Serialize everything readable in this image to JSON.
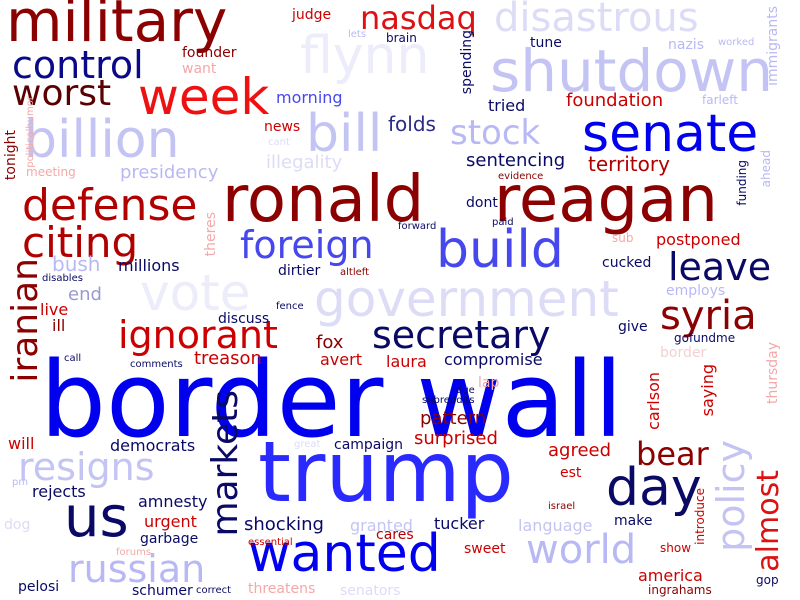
{
  "title": "",
  "colors": {
    "dark_red": "#8b0000",
    "red": "#dd1111",
    "light_red": "#f4a8a8",
    "pale_red": "#f9d6d6",
    "navy": "#0a0a66",
    "blue": "#0000ee",
    "mid_blue": "#4747f0",
    "light_blue": "#b8b8f4",
    "pale_blue": "#dedef8"
  },
  "words": [
    {
      "text": "border wall",
      "color": "#0000ee"
    },
    {
      "text": "trump",
      "color": "#2a2aff"
    },
    {
      "text": "ronald",
      "color": "#8b0000"
    },
    {
      "text": "reagan",
      "color": "#8b0000"
    },
    {
      "text": "military",
      "color": "#8b0000"
    },
    {
      "text": "shutdown",
      "color": "#c4c4f4"
    },
    {
      "text": "senate",
      "color": "#0000ee"
    },
    {
      "text": "billion",
      "color": "#c4c4f4"
    },
    {
      "text": "bill",
      "color": "#c4c4f4"
    },
    {
      "text": "week",
      "color": "#ee1111"
    },
    {
      "text": "build",
      "color": "#4747ee"
    },
    {
      "text": "government",
      "color": "#dcdcf6"
    },
    {
      "text": "vote",
      "color": "#ececfa"
    },
    {
      "text": "us",
      "color": "#0a0a66"
    },
    {
      "text": "wanted",
      "color": "#0000ee"
    },
    {
      "text": "day",
      "color": "#0a0a66"
    },
    {
      "text": "world",
      "color": "#b8b8f4"
    },
    {
      "text": "disastrous",
      "color": "#dcdcf6"
    },
    {
      "text": "flynn",
      "color": "#ececfa"
    },
    {
      "text": "control",
      "color": "#0a0a88"
    },
    {
      "text": "worst",
      "color": "#5a0000"
    },
    {
      "text": "nasdaq",
      "color": "#dd1111"
    },
    {
      "text": "stock",
      "color": "#b8b8f4"
    },
    {
      "text": "defense",
      "color": "#b00000"
    },
    {
      "text": "citing",
      "color": "#b00000"
    },
    {
      "text": "foreign",
      "color": "#4747ee"
    },
    {
      "text": "ignorant",
      "color": "#cc0000"
    },
    {
      "text": "secretary",
      "color": "#0a0a66"
    },
    {
      "text": "syria",
      "color": "#8b0000"
    },
    {
      "text": "leave",
      "color": "#0a0a66"
    },
    {
      "text": "iranian",
      "color": "#8b0000"
    },
    {
      "text": "markets",
      "color": "#0a0a66"
    },
    {
      "text": "russian",
      "color": "#b8b8f4"
    },
    {
      "text": "resigns",
      "color": "#c4c4f4"
    },
    {
      "text": "policy",
      "color": "#c4c4f4"
    },
    {
      "text": "almost",
      "color": "#dd1111"
    },
    {
      "text": "bear",
      "color": "#8b0000"
    },
    {
      "text": "territory",
      "color": "#b00000"
    },
    {
      "text": "foundation",
      "color": "#cc0000"
    },
    {
      "text": "folds",
      "color": "#2a2a88"
    },
    {
      "text": "presidency",
      "color": "#b8b8f4"
    },
    {
      "text": "sentencing",
      "color": "#0a0a66"
    },
    {
      "text": "illegality",
      "color": "#dcdcf6"
    },
    {
      "text": "millions",
      "color": "#0a0a66"
    },
    {
      "text": "bush",
      "color": "#b8b8f4"
    },
    {
      "text": "end",
      "color": "#9a9ad0"
    },
    {
      "text": "live",
      "color": "#cc0000"
    },
    {
      "text": "ill",
      "color": "#8b0000"
    },
    {
      "text": "treason",
      "color": "#cc0000"
    },
    {
      "text": "discuss",
      "color": "#0a0a66"
    },
    {
      "text": "fox",
      "color": "#8b0000"
    },
    {
      "text": "avert",
      "color": "#cc0000"
    },
    {
      "text": "laura",
      "color": "#cc0000"
    },
    {
      "text": "compromise",
      "color": "#0a0a66"
    },
    {
      "text": "pattern",
      "color": "#8b0000"
    },
    {
      "text": "surprised",
      "color": "#cc0000"
    },
    {
      "text": "democrats",
      "color": "#0a0a66"
    },
    {
      "text": "campaign",
      "color": "#0a0a66"
    },
    {
      "text": "agreed",
      "color": "#cc0000"
    },
    {
      "text": "rejects",
      "color": "#0a0a66"
    },
    {
      "text": "amnesty",
      "color": "#0a0a66"
    },
    {
      "text": "urgent",
      "color": "#cc0000"
    },
    {
      "text": "garbage",
      "color": "#0a0a66"
    },
    {
      "text": "shocking",
      "color": "#0a0a66"
    },
    {
      "text": "granted",
      "color": "#c4c4f4"
    },
    {
      "text": "tucker",
      "color": "#0a0a66"
    },
    {
      "text": "language",
      "color": "#c4c4f4"
    },
    {
      "text": "make",
      "color": "#0a0a66"
    },
    {
      "text": "cares",
      "color": "#b00000"
    },
    {
      "text": "sweet",
      "color": "#cc0000"
    },
    {
      "text": "america",
      "color": "#cc0000"
    },
    {
      "text": "ingrahams",
      "color": "#8b0000"
    },
    {
      "text": "gop",
      "color": "#0a0a66"
    },
    {
      "text": "schumer",
      "color": "#0a0a66"
    },
    {
      "text": "threatens",
      "color": "#f4a8a8"
    },
    {
      "text": "senators",
      "color": "#dcdcf6"
    },
    {
      "text": "pelosi",
      "color": "#0a0a66"
    },
    {
      "text": "dog",
      "color": "#dcdcf6"
    },
    {
      "text": "correct",
      "color": "#0a0a66"
    },
    {
      "text": "forums",
      "color": "#f4a8a8"
    },
    {
      "text": "essential",
      "color": "#cc0000"
    },
    {
      "text": "israel",
      "color": "#8b0000"
    },
    {
      "text": "show",
      "color": "#cc0000"
    },
    {
      "text": "introduce",
      "color": "#cc0000"
    },
    {
      "text": "judge",
      "color": "#cc0000"
    },
    {
      "text": "founder",
      "color": "#8b0000"
    },
    {
      "text": "want",
      "color": "#f4a8a8"
    },
    {
      "text": "lets",
      "color": "#b8b8f4"
    },
    {
      "text": "brain",
      "color": "#0a0a66"
    },
    {
      "text": "tune",
      "color": "#0a0a66"
    },
    {
      "text": "nazis",
      "color": "#b8b8f4"
    },
    {
      "text": "worked",
      "color": "#b8b8f4"
    },
    {
      "text": "morning",
      "color": "#4747ee"
    },
    {
      "text": "tried",
      "color": "#0a0a66"
    },
    {
      "text": "farleft",
      "color": "#b8b8f4"
    },
    {
      "text": "news",
      "color": "#cc0000"
    },
    {
      "text": "cant",
      "color": "#dcdcf6"
    },
    {
      "text": "meeting",
      "color": "#f4a8a8"
    },
    {
      "text": "politicalhumor",
      "color": "#f4a8a8"
    },
    {
      "text": "tonight",
      "color": "#8b0000"
    },
    {
      "text": "dont",
      "color": "#0a0a66"
    },
    {
      "text": "evidence",
      "color": "#8b0000"
    },
    {
      "text": "paid",
      "color": "#0a0a66"
    },
    {
      "text": "forward",
      "color": "#0a0a66"
    },
    {
      "text": "theres",
      "color": "#f4a8a8"
    },
    {
      "text": "sub",
      "color": "#f4a8a8"
    },
    {
      "text": "postponed",
      "color": "#cc0000"
    },
    {
      "text": "cucked",
      "color": "#0a0a66"
    },
    {
      "text": "employs",
      "color": "#b8b8f4"
    },
    {
      "text": "dirtier",
      "color": "#0a0a66"
    },
    {
      "text": "altleft",
      "color": "#8b0000"
    },
    {
      "text": "fence",
      "color": "#0a0a66"
    },
    {
      "text": "disables",
      "color": "#0a0a66"
    },
    {
      "text": "give",
      "color": "#0a0a66"
    },
    {
      "text": "gofundme",
      "color": "#0a0a66"
    },
    {
      "text": "comments",
      "color": "#0a0a66"
    },
    {
      "text": "call",
      "color": "#0a0a66"
    },
    {
      "text": "due",
      "color": "#0a0a66"
    },
    {
      "text": "lap",
      "color": "#f4a8a8"
    },
    {
      "text": "subreddits",
      "color": "#0a0a66"
    },
    {
      "text": "carlson",
      "color": "#cc0000"
    },
    {
      "text": "saying",
      "color": "#cc0000"
    },
    {
      "text": "thursday",
      "color": "#f4a8a8"
    },
    {
      "text": "great",
      "color": "#dcdcf6"
    },
    {
      "text": "will",
      "color": "#cc0000"
    },
    {
      "text": "pm",
      "color": "#b8b8f4"
    },
    {
      "text": "est",
      "color": "#cc0000"
    },
    {
      "text": "spending",
      "color": "#0a0a66"
    },
    {
      "text": "immigrants",
      "color": "#b8b8f4"
    },
    {
      "text": "funding",
      "color": "#0a0a66"
    },
    {
      "text": "ahead",
      "color": "#b8b8f4"
    },
    {
      "text": "border",
      "color": "#f4d0d0"
    }
  ]
}
